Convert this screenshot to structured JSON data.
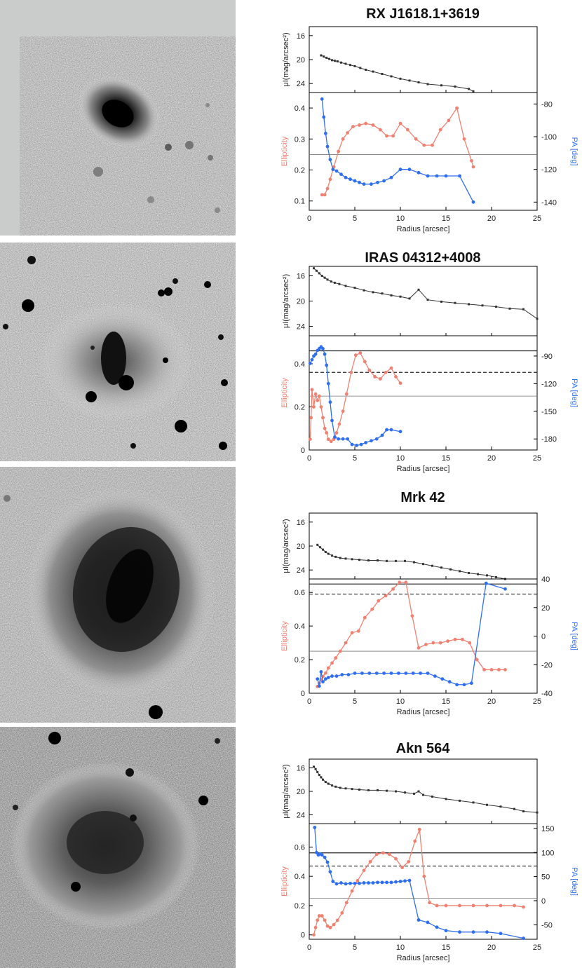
{
  "colors": {
    "profile": "#333333",
    "ellipticity": "#f08070",
    "pa": "#2e6ef0",
    "accent_red": "#f08070",
    "accent_blue": "#2e6ef0"
  },
  "panels": [
    {
      "id": "rx",
      "title": "RX J1618.1+3619"
    },
    {
      "id": "iras",
      "title": "IRAS 04312+4008"
    },
    {
      "id": "mrk",
      "title": "Mrk 42"
    },
    {
      "id": "akn",
      "title": "Akn 564"
    }
  ],
  "chart_data": [
    {
      "type": "line",
      "title": "RX J1618.1+3619",
      "xlabel": "Radius [arcsec]",
      "xlim": [
        0,
        25
      ],
      "xticks": [
        0,
        5,
        10,
        15,
        20,
        25
      ],
      "surface_brightness": {
        "ylabel": "μI(mag/arcsec²)",
        "ylim": [
          25.5,
          14.5
        ],
        "yticks": [
          16,
          20,
          24
        ],
        "x": [
          1.3,
          1.6,
          1.9,
          2.2,
          2.5,
          2.8,
          3.1,
          3.5,
          4.0,
          4.5,
          5.0,
          5.6,
          6.2,
          7.0,
          8.0,
          9.0,
          10.0,
          11.0,
          12.0,
          13.0,
          14.5,
          16.0,
          17.5,
          18.0
        ],
        "values": [
          19.3,
          19.5,
          19.7,
          19.9,
          20.1,
          20.2,
          20.3,
          20.5,
          20.7,
          20.9,
          21.1,
          21.4,
          21.7,
          22.0,
          22.4,
          22.8,
          23.2,
          23.5,
          23.8,
          24.1,
          24.3,
          24.5,
          24.9,
          25.3
        ]
      },
      "structure": {
        "ylabel": "Ellipticity",
        "ylim": [
          0.07,
          0.45
        ],
        "yticks": [
          0.1,
          0.2,
          0.3,
          0.4
        ],
        "y2label": "PA [deg]",
        "y2lim": [
          -145,
          -73
        ],
        "y2ticks": [
          -80,
          -100,
          -120,
          -140
        ],
        "reference_lines": [
          {
            "value": 0.25,
            "style": "thin"
          }
        ],
        "series": [
          {
            "name": "Ellipticity",
            "axis": "left",
            "x": [
              1.4,
              1.7,
              2.0,
              2.3,
              2.7,
              3.2,
              3.7,
              4.2,
              4.8,
              5.5,
              6.2,
              7.0,
              7.8,
              8.5,
              9.2,
              10.0,
              10.8,
              11.7,
              12.6,
              13.5,
              14.4,
              15.3,
              16.2,
              17.0,
              17.8,
              18.0
            ],
            "values": [
              0.12,
              0.12,
              0.14,
              0.17,
              0.21,
              0.26,
              0.3,
              0.32,
              0.34,
              0.345,
              0.35,
              0.345,
              0.33,
              0.31,
              0.31,
              0.35,
              0.33,
              0.3,
              0.28,
              0.28,
              0.33,
              0.36,
              0.4,
              0.3,
              0.23,
              0.21
            ]
          },
          {
            "name": "PA",
            "axis": "right",
            "x": [
              1.4,
              1.6,
              1.8,
              2.0,
              2.3,
              2.6,
              3.0,
              3.5,
              4.0,
              4.5,
              5.0,
              5.5,
              6.0,
              6.8,
              7.5,
              8.2,
              9.0,
              10.0,
              11.0,
              12.0,
              13.0,
              14.0,
              15.0,
              16.5,
              18.0
            ],
            "values": [
              -77,
              -88,
              -98,
              -106,
              -114,
              -120,
              -121,
              -123,
              -125,
              -126,
              -127,
              -128,
              -129,
              -129,
              -128,
              -127,
              -125,
              -120,
              -120,
              -122,
              -124,
              -124,
              -124,
              -124,
              -140
            ]
          }
        ]
      }
    },
    {
      "type": "line",
      "title": "IRAS 04312+4008",
      "xlabel": "Radius [arcsec]",
      "xlim": [
        0,
        25
      ],
      "xticks": [
        0,
        5,
        10,
        15,
        20,
        25
      ],
      "surface_brightness": {
        "ylabel": "μI(mag/arcsec²)",
        "ylim": [
          25.5,
          14.5
        ],
        "yticks": [
          16,
          20,
          24
        ],
        "x": [
          0.5,
          0.8,
          1.1,
          1.4,
          1.7,
          2.0,
          2.4,
          2.8,
          3.3,
          4.0,
          5.0,
          6.0,
          7.0,
          8.0,
          9.0,
          10.0,
          11.0,
          12.0,
          13.0,
          14.5,
          16.0,
          17.5,
          19.0,
          20.5,
          22.0,
          23.5,
          25.0
        ],
        "values": [
          14.8,
          15.2,
          15.6,
          16.0,
          16.3,
          16.6,
          16.9,
          17.1,
          17.3,
          17.6,
          17.9,
          18.3,
          18.6,
          18.8,
          19.1,
          19.3,
          19.6,
          18.2,
          19.8,
          20.1,
          20.3,
          20.5,
          20.7,
          20.9,
          21.2,
          21.3,
          22.8
        ]
      },
      "structure": {
        "ylabel": "Ellipticity",
        "ylim": [
          0,
          0.53
        ],
        "yticks": [
          0,
          0.2,
          0.4
        ],
        "y2label": "PA [deg]",
        "y2lim": [
          -192,
          -68
        ],
        "y2ticks": [
          -90,
          -120,
          -150,
          -180
        ],
        "reference_lines": [
          {
            "value": 0.46,
            "style": "solid"
          },
          {
            "value": 0.36,
            "style": "dashed"
          },
          {
            "value": 0.25,
            "style": "thin"
          }
        ],
        "series": [
          {
            "name": "Ellipticity",
            "axis": "left",
            "x": [
              0.1,
              0.2,
              0.3,
              0.5,
              0.7,
              0.9,
              1.1,
              1.3,
              1.5,
              1.7,
              1.9,
              2.1,
              2.4,
              2.7,
              3.0,
              3.3,
              3.7,
              4.1,
              4.6,
              5.1,
              5.6,
              6.1,
              6.6,
              7.2,
              7.8,
              8.4,
              9.0,
              9.5,
              10.0
            ],
            "values": [
              0.05,
              0.15,
              0.28,
              0.2,
              0.26,
              0.23,
              0.25,
              0.2,
              0.15,
              0.1,
              0.08,
              0.05,
              0.04,
              0.05,
              0.08,
              0.12,
              0.18,
              0.26,
              0.36,
              0.44,
              0.45,
              0.41,
              0.37,
              0.34,
              0.33,
              0.36,
              0.38,
              0.34,
              0.31
            ]
          },
          {
            "name": "PA",
            "axis": "right",
            "x": [
              0.1,
              0.3,
              0.5,
              0.7,
              0.9,
              1.1,
              1.3,
              1.5,
              1.7,
              1.9,
              2.1,
              2.3,
              2.5,
              2.8,
              3.2,
              3.7,
              4.2,
              4.7,
              5.2,
              5.7,
              6.2,
              6.8,
              7.4,
              8.0,
              8.5,
              9.0,
              10.0
            ],
            "values": [
              -98,
              -94,
              -90,
              -88,
              -84,
              -82,
              -80,
              -82,
              -88,
              -100,
              -120,
              -140,
              -160,
              -178,
              -180,
              -180,
              -180,
              -186,
              -187,
              -186,
              -184,
              -182,
              -180,
              -176,
              -170,
              -170,
              -172
            ]
          }
        ]
      }
    },
    {
      "type": "line",
      "title": "Mrk 42",
      "xlabel": "Radius [arcsec]",
      "xlim": [
        0,
        25
      ],
      "xticks": [
        0,
        5,
        10,
        15,
        20,
        25
      ],
      "surface_brightness": {
        "ylabel": "μI(mag/arcsec²)",
        "ylim": [
          25.5,
          14.5
        ],
        "yticks": [
          16,
          20,
          24
        ],
        "x": [
          0.9,
          1.2,
          1.5,
          1.8,
          2.1,
          2.5,
          2.9,
          3.4,
          4.0,
          4.7,
          5.5,
          6.5,
          7.5,
          8.5,
          9.5,
          10.5,
          11.5,
          12.5,
          13.5,
          14.5,
          15.5,
          16.5,
          17.5,
          18.5,
          19.5,
          20.5,
          21.5
        ],
        "values": [
          19.8,
          20.2,
          20.6,
          21.0,
          21.3,
          21.6,
          21.8,
          22.0,
          22.1,
          22.2,
          22.3,
          22.4,
          22.4,
          22.5,
          22.5,
          22.5,
          22.7,
          23.0,
          23.3,
          23.6,
          23.9,
          24.2,
          24.5,
          24.7,
          24.9,
          25.2,
          25.5
        ]
      },
      "structure": {
        "ylabel": "Ellipticity",
        "ylim": [
          0,
          0.68
        ],
        "yticks": [
          0,
          0.2,
          0.4,
          0.6
        ],
        "y2label": "PA [deg]",
        "y2lim": [
          -40,
          40
        ],
        "y2ticks": [
          40,
          20,
          0,
          -20,
          -40
        ],
        "reference_lines": [
          {
            "value": 0.65,
            "style": "solid"
          },
          {
            "value": 0.59,
            "style": "dashed"
          },
          {
            "value": 0.25,
            "style": "thin"
          }
        ],
        "series": [
          {
            "name": "Ellipticity",
            "axis": "left",
            "x": [
              0.9,
              1.1,
              1.3,
              1.5,
              1.8,
              2.1,
              2.5,
              2.9,
              3.4,
              4.0,
              4.7,
              5.4,
              6.1,
              6.9,
              7.6,
              8.4,
              9.2,
              9.9,
              10.6,
              11.3,
              12.0,
              12.8,
              13.6,
              14.4,
              15.2,
              16.0,
              16.8,
              17.6,
              18.4,
              19.2,
              20.0,
              20.8,
              21.5
            ],
            "values": [
              0.04,
              0.06,
              0.08,
              0.1,
              0.12,
              0.15,
              0.18,
              0.21,
              0.25,
              0.3,
              0.36,
              0.37,
              0.45,
              0.5,
              0.55,
              0.58,
              0.62,
              0.66,
              0.66,
              0.46,
              0.27,
              0.29,
              0.3,
              0.3,
              0.31,
              0.32,
              0.32,
              0.3,
              0.2,
              0.14,
              0.14,
              0.14,
              0.14
            ]
          },
          {
            "name": "PA",
            "axis": "right",
            "x": [
              0.9,
              1.1,
              1.3,
              1.5,
              1.8,
              2.1,
              2.5,
              3.0,
              3.6,
              4.3,
              5.0,
              5.8,
              6.6,
              7.4,
              8.2,
              9.0,
              9.8,
              10.6,
              11.4,
              12.2,
              13.0,
              13.8,
              14.6,
              15.4,
              16.2,
              17.0,
              17.8,
              19.4,
              21.5
            ],
            "values": [
              -30,
              -35,
              -25,
              -32,
              -30,
              -29,
              -28,
              -28,
              -27,
              -27,
              -26,
              -26,
              -26,
              -26,
              -26,
              -26,
              -26,
              -26,
              -26,
              -26,
              -26,
              -28,
              -30,
              -32,
              -34,
              -34,
              -33,
              37,
              33
            ]
          }
        ]
      }
    },
    {
      "type": "line",
      "title": "Akn 564",
      "xlabel": "Radius [arcsec]",
      "xlim": [
        0,
        25
      ],
      "xticks": [
        0,
        5,
        10,
        15,
        20,
        25
      ],
      "surface_brightness": {
        "ylabel": "μI(mag/arcsec²)",
        "ylim": [
          25.5,
          14.5
        ],
        "yticks": [
          16,
          20,
          24
        ],
        "x": [
          0.5,
          0.7,
          0.9,
          1.1,
          1.3,
          1.5,
          1.8,
          2.1,
          2.5,
          2.9,
          3.4,
          4.0,
          4.7,
          5.5,
          6.5,
          7.5,
          8.5,
          9.5,
          10.5,
          11.5,
          12.0,
          12.5,
          13.5,
          15.0,
          16.5,
          18.0,
          19.5,
          21.0,
          22.5,
          23.5,
          25.0
        ],
        "values": [
          15.8,
          16.2,
          16.7,
          17.2,
          17.6,
          18.0,
          18.4,
          18.7,
          19.0,
          19.2,
          19.4,
          19.5,
          19.6,
          19.7,
          19.8,
          19.8,
          19.9,
          20.0,
          20.2,
          20.4,
          20.0,
          20.6,
          20.9,
          21.3,
          21.6,
          21.9,
          22.3,
          22.6,
          23.0,
          23.4,
          23.6
        ]
      },
      "structure": {
        "ylabel": "Ellipticity",
        "ylim": [
          -0.03,
          0.76
        ],
        "yticks": [
          0,
          0.2,
          0.4,
          0.6
        ],
        "y2label": "PA [deg]",
        "y2lim": [
          -80,
          160
        ],
        "y2ticks": [
          150,
          100,
          50,
          0,
          -50
        ],
        "reference_lines": [
          {
            "value": 0.56,
            "style": "solid"
          },
          {
            "value": 0.47,
            "style": "dashed"
          },
          {
            "value": 0.25,
            "style": "thin"
          }
        ],
        "series": [
          {
            "name": "Ellipticity",
            "axis": "left",
            "x": [
              0.5,
              0.7,
              0.9,
              1.1,
              1.4,
              1.7,
              2.0,
              2.3,
              2.7,
              3.1,
              3.6,
              4.1,
              4.7,
              5.3,
              6.0,
              6.7,
              7.4,
              8.1,
              8.8,
              9.5,
              10.2,
              10.9,
              11.6,
              12.1,
              12.6,
              13.2,
              14.0,
              15.0,
              16.5,
              18.0,
              19.5,
              21.0,
              22.5,
              23.5
            ],
            "values": [
              0.0,
              0.05,
              0.1,
              0.13,
              0.13,
              0.1,
              0.06,
              0.05,
              0.07,
              0.1,
              0.15,
              0.22,
              0.3,
              0.37,
              0.44,
              0.5,
              0.55,
              0.56,
              0.55,
              0.52,
              0.46,
              0.5,
              0.64,
              0.72,
              0.4,
              0.22,
              0.2,
              0.2,
              0.2,
              0.2,
              0.2,
              0.2,
              0.2,
              0.19
            ]
          },
          {
            "name": "PA",
            "axis": "right",
            "x": [
              0.6,
              0.8,
              1.0,
              1.2,
              1.4,
              1.7,
              2.0,
              2.3,
              2.6,
              3.0,
              3.5,
              4.0,
              4.5,
              5.0,
              5.5,
              6.0,
              6.5,
              7.0,
              7.5,
              8.0,
              8.5,
              9.0,
              9.5,
              10.0,
              10.5,
              11.0,
              12.0,
              13.0,
              14.0,
              15.0,
              16.5,
              18.0,
              19.5,
              21.0,
              23.5
            ],
            "values": [
              152,
              100,
              95,
              97,
              95,
              90,
              80,
              60,
              40,
              35,
              37,
              35,
              36,
              36,
              36,
              37,
              37,
              37,
              38,
              38,
              38,
              38,
              39,
              40,
              41,
              42,
              -40,
              -45,
              -55,
              -62,
              -65,
              -65,
              -65,
              -68,
              -78
            ]
          }
        ]
      }
    }
  ]
}
